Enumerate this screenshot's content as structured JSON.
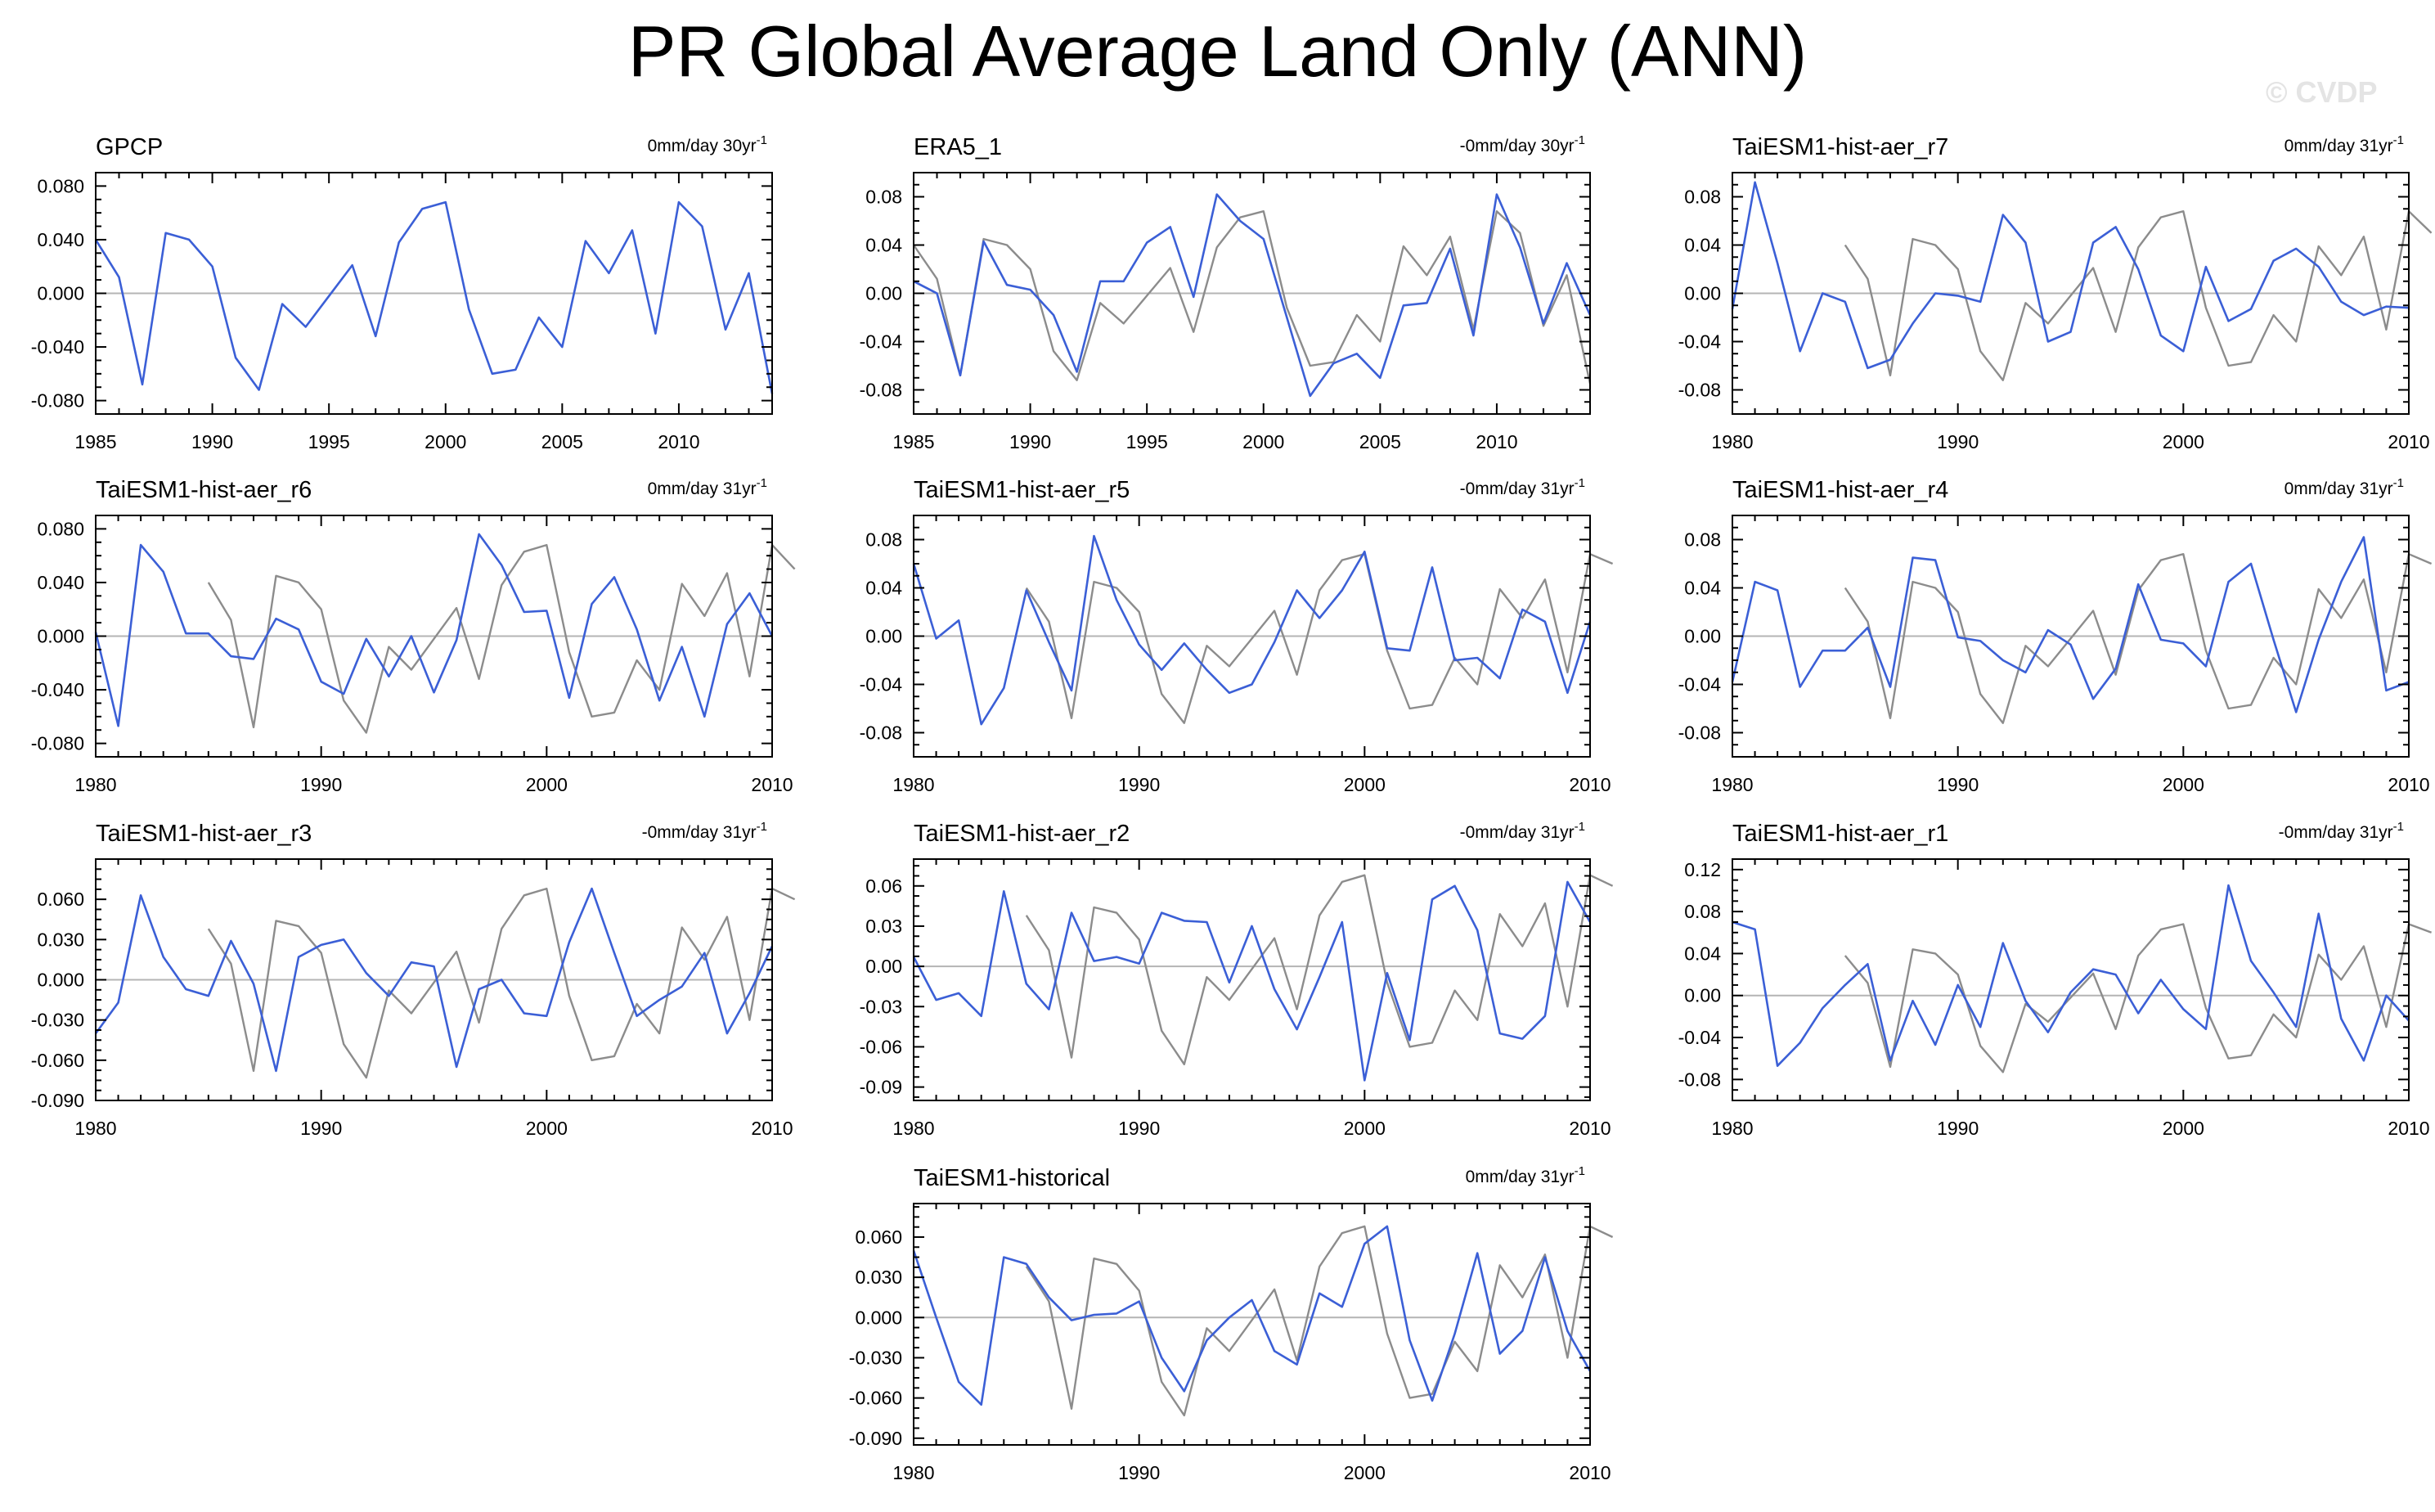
{
  "title": "PR Global Average Land Only (ANN)",
  "watermark": "© CVDP",
  "colors": {
    "model_line": "#3b5fd6",
    "reference_line": "#8c8c8c",
    "axis": "#000000",
    "zero_line": "#b4b4b4"
  },
  "chart_data": [
    {
      "type": "line",
      "panel_title": "GPCP",
      "trend_label": "0mm/day 30yr",
      "trend_suffix": "-1",
      "xlim": [
        1985,
        2014
      ],
      "xticks": [
        1985,
        1990,
        1995,
        2000,
        2005,
        2010
      ],
      "ylim": [
        -0.09,
        0.09
      ],
      "yticks": [
        "0.080",
        "0.040",
        "0.000",
        "-0.040",
        "-0.080"
      ],
      "ytick_values": [
        0.08,
        0.04,
        0.0,
        -0.04,
        -0.08
      ],
      "series": [
        {
          "name": "GPCP",
          "x_start": 1985,
          "values": [
            0.04,
            0.012,
            -0.068,
            0.045,
            0.04,
            0.02,
            -0.048,
            -0.072,
            -0.008,
            -0.025,
            -0.002,
            0.021,
            -0.032,
            0.038,
            0.063,
            0.068,
            -0.012,
            -0.06,
            -0.057,
            -0.018,
            -0.04,
            0.039,
            0.015,
            0.047,
            -0.03,
            0.068,
            0.05,
            -0.027,
            0.015,
            -0.075
          ]
        }
      ]
    },
    {
      "type": "line",
      "panel_title": "ERA5_1",
      "trend_label": "-0mm/day 30yr",
      "trend_suffix": "-1",
      "xlim": [
        1985,
        2014
      ],
      "xticks": [
        1985,
        1990,
        1995,
        2000,
        2005,
        2010
      ],
      "ylim": [
        -0.1,
        0.1
      ],
      "yticks": [
        "0.08",
        "0.04",
        "0.00",
        "-0.04",
        "-0.08"
      ],
      "ytick_values": [
        0.08,
        0.04,
        0.0,
        -0.04,
        -0.08
      ],
      "series": [
        {
          "name": "ERA5_1",
          "x_start": 1985,
          "values": [
            0.01,
            0.0,
            -0.068,
            0.043,
            0.007,
            0.003,
            -0.018,
            -0.065,
            0.01,
            0.01,
            0.042,
            0.055,
            -0.003,
            0.082,
            0.06,
            0.045,
            -0.02,
            -0.085,
            -0.058,
            -0.05,
            -0.07,
            -0.01,
            -0.008,
            0.037,
            -0.035,
            0.082,
            0.038,
            -0.025,
            0.025,
            -0.018
          ]
        },
        {
          "name": "GPCP",
          "x_start": 1985,
          "values": [
            0.04,
            0.012,
            -0.068,
            0.045,
            0.04,
            0.02,
            -0.048,
            -0.072,
            -0.008,
            -0.025,
            -0.002,
            0.021,
            -0.032,
            0.038,
            0.063,
            0.068,
            -0.012,
            -0.06,
            -0.057,
            -0.018,
            -0.04,
            0.039,
            0.015,
            0.047,
            -0.03,
            0.068,
            0.05,
            -0.027,
            0.015,
            -0.075
          ]
        }
      ]
    },
    {
      "type": "line",
      "panel_title": "TaiESM1-hist-aer_r7",
      "trend_label": "0mm/day 31yr",
      "trend_suffix": "-1",
      "xlim": [
        1980,
        2010
      ],
      "xticks": [
        1980,
        1990,
        2000,
        2010
      ],
      "ylim": [
        -0.1,
        0.1
      ],
      "yticks": [
        "0.08",
        "0.04",
        "0.00",
        "-0.04",
        "-0.08"
      ],
      "ytick_values": [
        0.08,
        0.04,
        0.0,
        -0.04,
        -0.08
      ],
      "series": [
        {
          "name": "TaiESM1-hist-aer_r7",
          "x_start": 1980,
          "values": [
            -0.013,
            0.092,
            0.025,
            -0.048,
            0.0,
            -0.007,
            -0.062,
            -0.055,
            -0.025,
            0.0,
            -0.002,
            -0.007,
            0.065,
            0.042,
            -0.04,
            -0.032,
            0.042,
            0.055,
            0.02,
            -0.035,
            -0.048,
            0.022,
            -0.023,
            -0.013,
            0.027,
            0.037,
            0.022,
            -0.007,
            -0.018,
            -0.011,
            -0.012
          ]
        },
        {
          "name": "GPCP",
          "x_start": 1985,
          "values": [
            0.04,
            0.012,
            -0.068,
            0.045,
            0.04,
            0.02,
            -0.048,
            -0.072,
            -0.008,
            -0.025,
            -0.002,
            0.021,
            -0.032,
            0.038,
            0.063,
            0.068,
            -0.012,
            -0.06,
            -0.057,
            -0.018,
            -0.04,
            0.039,
            0.015,
            0.047,
            -0.03,
            0.068,
            0.05
          ]
        }
      ]
    },
    {
      "type": "line",
      "panel_title": "TaiESM1-hist-aer_r6",
      "trend_label": "0mm/day 31yr",
      "trend_suffix": "-1",
      "xlim": [
        1980,
        2010
      ],
      "xticks": [
        1980,
        1990,
        2000,
        2010
      ],
      "ylim": [
        -0.09,
        0.09
      ],
      "yticks": [
        "0.080",
        "0.040",
        "0.000",
        "-0.040",
        "-0.080"
      ],
      "ytick_values": [
        0.08,
        0.04,
        0.0,
        -0.04,
        -0.08
      ],
      "series": [
        {
          "name": "TaiESM1-hist-aer_r6",
          "x_start": 1980,
          "values": [
            0.003,
            -0.067,
            0.068,
            0.048,
            0.002,
            0.002,
            -0.015,
            -0.017,
            0.013,
            0.005,
            -0.034,
            -0.043,
            -0.002,
            -0.03,
            0.0,
            -0.042,
            -0.003,
            0.076,
            0.053,
            0.018,
            0.019,
            -0.046,
            0.024,
            0.044,
            0.005,
            -0.048,
            -0.008,
            -0.06,
            0.009,
            0.032,
            0.0
          ]
        },
        {
          "name": "GPCP",
          "x_start": 1985,
          "values": [
            0.04,
            0.012,
            -0.068,
            0.045,
            0.04,
            0.02,
            -0.048,
            -0.072,
            -0.008,
            -0.025,
            -0.002,
            0.021,
            -0.032,
            0.038,
            0.063,
            0.068,
            -0.012,
            -0.06,
            -0.057,
            -0.018,
            -0.04,
            0.039,
            0.015,
            0.047,
            -0.03,
            0.068,
            0.05
          ]
        }
      ]
    },
    {
      "type": "line",
      "panel_title": "TaiESM1-hist-aer_r5",
      "trend_label": "-0mm/day 31yr",
      "trend_suffix": "-1",
      "xlim": [
        1980,
        2010
      ],
      "xticks": [
        1980,
        1990,
        2000,
        2010
      ],
      "ylim": [
        -0.1,
        0.1
      ],
      "yticks": [
        "0.08",
        "0.04",
        "0.00",
        "-0.04",
        "-0.08"
      ],
      "ytick_values": [
        0.08,
        0.04,
        0.0,
        -0.04,
        -0.08
      ],
      "series": [
        {
          "name": "TaiESM1-hist-aer_r5",
          "x_start": 1980,
          "values": [
            0.06,
            -0.002,
            0.013,
            -0.073,
            -0.043,
            0.038,
            -0.005,
            -0.045,
            0.083,
            0.03,
            -0.007,
            -0.028,
            -0.006,
            -0.028,
            -0.047,
            -0.04,
            -0.005,
            0.038,
            0.015,
            0.038,
            0.07,
            -0.01,
            -0.012,
            0.057,
            -0.02,
            -0.018,
            -0.035,
            0.022,
            0.012,
            -0.047,
            0.012
          ]
        },
        {
          "name": "GPCP",
          "x_start": 1985,
          "values": [
            0.04,
            0.012,
            -0.068,
            0.045,
            0.04,
            0.02,
            -0.048,
            -0.072,
            -0.008,
            -0.025,
            -0.002,
            0.021,
            -0.032,
            0.038,
            0.063,
            0.068,
            -0.012,
            -0.06,
            -0.057,
            -0.018,
            -0.04,
            0.039,
            0.015,
            0.047,
            -0.03,
            0.068,
            0.06
          ]
        }
      ]
    },
    {
      "type": "line",
      "panel_title": "TaiESM1-hist-aer_r4",
      "trend_label": "0mm/day 31yr",
      "trend_suffix": "-1",
      "xlim": [
        1980,
        2010
      ],
      "xticks": [
        1980,
        1990,
        2000,
        2010
      ],
      "ylim": [
        -0.1,
        0.1
      ],
      "yticks": [
        "0.08",
        "0.04",
        "0.00",
        "-0.04",
        "-0.08"
      ],
      "ytick_values": [
        0.08,
        0.04,
        0.0,
        -0.04,
        -0.08
      ],
      "series": [
        {
          "name": "TaiESM1-hist-aer_r4",
          "x_start": 1980,
          "values": [
            -0.038,
            0.045,
            0.038,
            -0.042,
            -0.012,
            -0.012,
            0.007,
            -0.042,
            0.065,
            0.063,
            -0.001,
            -0.004,
            -0.02,
            -0.03,
            0.005,
            -0.007,
            -0.052,
            -0.027,
            0.043,
            -0.003,
            -0.006,
            -0.025,
            0.045,
            0.06,
            -0.003,
            -0.063,
            -0.003,
            0.045,
            0.082,
            -0.045,
            -0.038
          ]
        },
        {
          "name": "GPCP",
          "x_start": 1985,
          "values": [
            0.04,
            0.012,
            -0.068,
            0.045,
            0.04,
            0.02,
            -0.048,
            -0.072,
            -0.008,
            -0.025,
            -0.002,
            0.021,
            -0.032,
            0.038,
            0.063,
            0.068,
            -0.012,
            -0.06,
            -0.057,
            -0.018,
            -0.04,
            0.039,
            0.015,
            0.047,
            -0.03,
            0.068,
            0.06
          ]
        }
      ]
    },
    {
      "type": "line",
      "panel_title": "TaiESM1-hist-aer_r3",
      "trend_label": "-0mm/day 31yr",
      "trend_suffix": "-1",
      "xlim": [
        1980,
        2010
      ],
      "xticks": [
        1980,
        1990,
        2000,
        2010
      ],
      "ylim": [
        -0.09,
        0.09
      ],
      "yticks": [
        "0.060",
        "0.030",
        "0.000",
        "-0.030",
        "-0.060",
        "-0.090"
      ],
      "ytick_values": [
        0.06,
        0.03,
        0.0,
        -0.03,
        -0.06,
        -0.09
      ],
      "series": [
        {
          "name": "TaiESM1-hist-aer_r3",
          "x_start": 1980,
          "values": [
            -0.04,
            -0.017,
            0.063,
            0.017,
            -0.007,
            -0.012,
            0.029,
            -0.003,
            -0.068,
            0.017,
            0.026,
            0.03,
            0.005,
            -0.012,
            0.013,
            0.01,
            -0.065,
            -0.007,
            0.0,
            -0.025,
            -0.027,
            0.028,
            0.068,
            0.02,
            -0.027,
            -0.015,
            -0.005,
            0.02,
            -0.04,
            -0.01,
            0.025
          ]
        },
        {
          "name": "GPCP",
          "x_start": 1985,
          "values": [
            0.038,
            0.012,
            -0.068,
            0.044,
            0.04,
            0.02,
            -0.048,
            -0.073,
            -0.008,
            -0.025,
            -0.002,
            0.021,
            -0.032,
            0.038,
            0.063,
            0.068,
            -0.012,
            -0.06,
            -0.057,
            -0.018,
            -0.04,
            0.039,
            0.015,
            0.047,
            -0.03,
            0.068,
            0.06
          ]
        }
      ]
    },
    {
      "type": "line",
      "panel_title": "TaiESM1-hist-aer_r2",
      "trend_label": "-0mm/day 31yr",
      "trend_suffix": "-1",
      "xlim": [
        1980,
        2010
      ],
      "xticks": [
        1980,
        1990,
        2000,
        2010
      ],
      "ylim": [
        -0.1,
        0.08
      ],
      "yticks": [
        "0.06",
        "0.03",
        "0.00",
        "-0.03",
        "-0.06",
        "-0.09"
      ],
      "ytick_values": [
        0.06,
        0.03,
        0.0,
        -0.03,
        -0.06,
        -0.09
      ],
      "series": [
        {
          "name": "TaiESM1-hist-aer_r2",
          "x_start": 1980,
          "values": [
            0.007,
            -0.025,
            -0.02,
            -0.037,
            0.056,
            -0.013,
            -0.032,
            0.04,
            0.004,
            0.007,
            0.002,
            0.04,
            0.034,
            0.033,
            -0.012,
            0.03,
            -0.017,
            -0.047,
            -0.008,
            0.033,
            -0.085,
            -0.005,
            -0.055,
            0.05,
            0.06,
            0.027,
            -0.05,
            -0.054,
            -0.037,
            0.063,
            0.033
          ]
        },
        {
          "name": "GPCP",
          "x_start": 1985,
          "values": [
            0.038,
            0.012,
            -0.068,
            0.044,
            0.04,
            0.02,
            -0.048,
            -0.073,
            -0.008,
            -0.025,
            -0.002,
            0.021,
            -0.032,
            0.038,
            0.063,
            0.068,
            -0.012,
            -0.06,
            -0.057,
            -0.018,
            -0.04,
            0.039,
            0.015,
            0.047,
            -0.03,
            0.068,
            0.06
          ]
        }
      ]
    },
    {
      "type": "line",
      "panel_title": "TaiESM1-hist-aer_r1",
      "trend_label": "-0mm/day 31yr",
      "trend_suffix": "-1",
      "xlim": [
        1980,
        2010
      ],
      "xticks": [
        1980,
        1990,
        2000,
        2010
      ],
      "ylim": [
        -0.1,
        0.13
      ],
      "yticks": [
        "0.12",
        "0.08",
        "0.04",
        "0.00",
        "-0.04",
        "-0.08"
      ],
      "ytick_values": [
        0.12,
        0.08,
        0.04,
        0.0,
        -0.04,
        -0.08
      ],
      "series": [
        {
          "name": "TaiESM1-hist-aer_r1",
          "x_start": 1980,
          "values": [
            0.07,
            0.063,
            -0.067,
            -0.045,
            -0.012,
            0.01,
            0.03,
            -0.062,
            -0.005,
            -0.047,
            0.01,
            -0.03,
            0.05,
            -0.005,
            -0.035,
            0.003,
            0.025,
            0.02,
            -0.017,
            0.015,
            -0.013,
            -0.032,
            0.105,
            0.033,
            0.003,
            -0.03,
            0.078,
            -0.022,
            -0.062,
            0.0,
            -0.024
          ]
        },
        {
          "name": "GPCP",
          "x_start": 1985,
          "values": [
            0.038,
            0.012,
            -0.068,
            0.044,
            0.04,
            0.02,
            -0.048,
            -0.073,
            -0.008,
            -0.025,
            -0.002,
            0.021,
            -0.032,
            0.038,
            0.063,
            0.068,
            -0.012,
            -0.06,
            -0.057,
            -0.018,
            -0.04,
            0.039,
            0.015,
            0.047,
            -0.03,
            0.068,
            0.06
          ]
        }
      ]
    },
    {
      "type": "line",
      "panel_title": "TaiESM1-historical",
      "trend_label": "0mm/day 31yr",
      "trend_suffix": "-1",
      "xlim": [
        1980,
        2010
      ],
      "xticks": [
        1980,
        1990,
        2000,
        2010
      ],
      "ylim": [
        -0.095,
        0.085
      ],
      "yticks": [
        "0.060",
        "0.030",
        "0.000",
        "-0.030",
        "-0.060",
        "-0.090"
      ],
      "ytick_values": [
        0.06,
        0.03,
        0.0,
        -0.03,
        -0.06,
        -0.09
      ],
      "series": [
        {
          "name": "TaiESM1-historical",
          "x_start": 1980,
          "values": [
            0.05,
            0.0,
            -0.048,
            -0.065,
            0.045,
            0.04,
            0.015,
            -0.002,
            0.002,
            0.003,
            0.012,
            -0.03,
            -0.055,
            -0.017,
            0.0,
            0.013,
            -0.025,
            -0.035,
            0.018,
            0.008,
            0.055,
            0.068,
            -0.017,
            -0.062,
            -0.012,
            0.048,
            -0.027,
            -0.01,
            0.045,
            -0.01,
            -0.04
          ]
        },
        {
          "name": "GPCP",
          "x_start": 1985,
          "values": [
            0.038,
            0.012,
            -0.068,
            0.044,
            0.04,
            0.02,
            -0.048,
            -0.073,
            -0.008,
            -0.025,
            -0.002,
            0.021,
            -0.032,
            0.038,
            0.063,
            0.068,
            -0.012,
            -0.06,
            -0.057,
            -0.018,
            -0.04,
            0.039,
            0.015,
            0.047,
            -0.03,
            0.068,
            0.06
          ]
        }
      ]
    }
  ]
}
